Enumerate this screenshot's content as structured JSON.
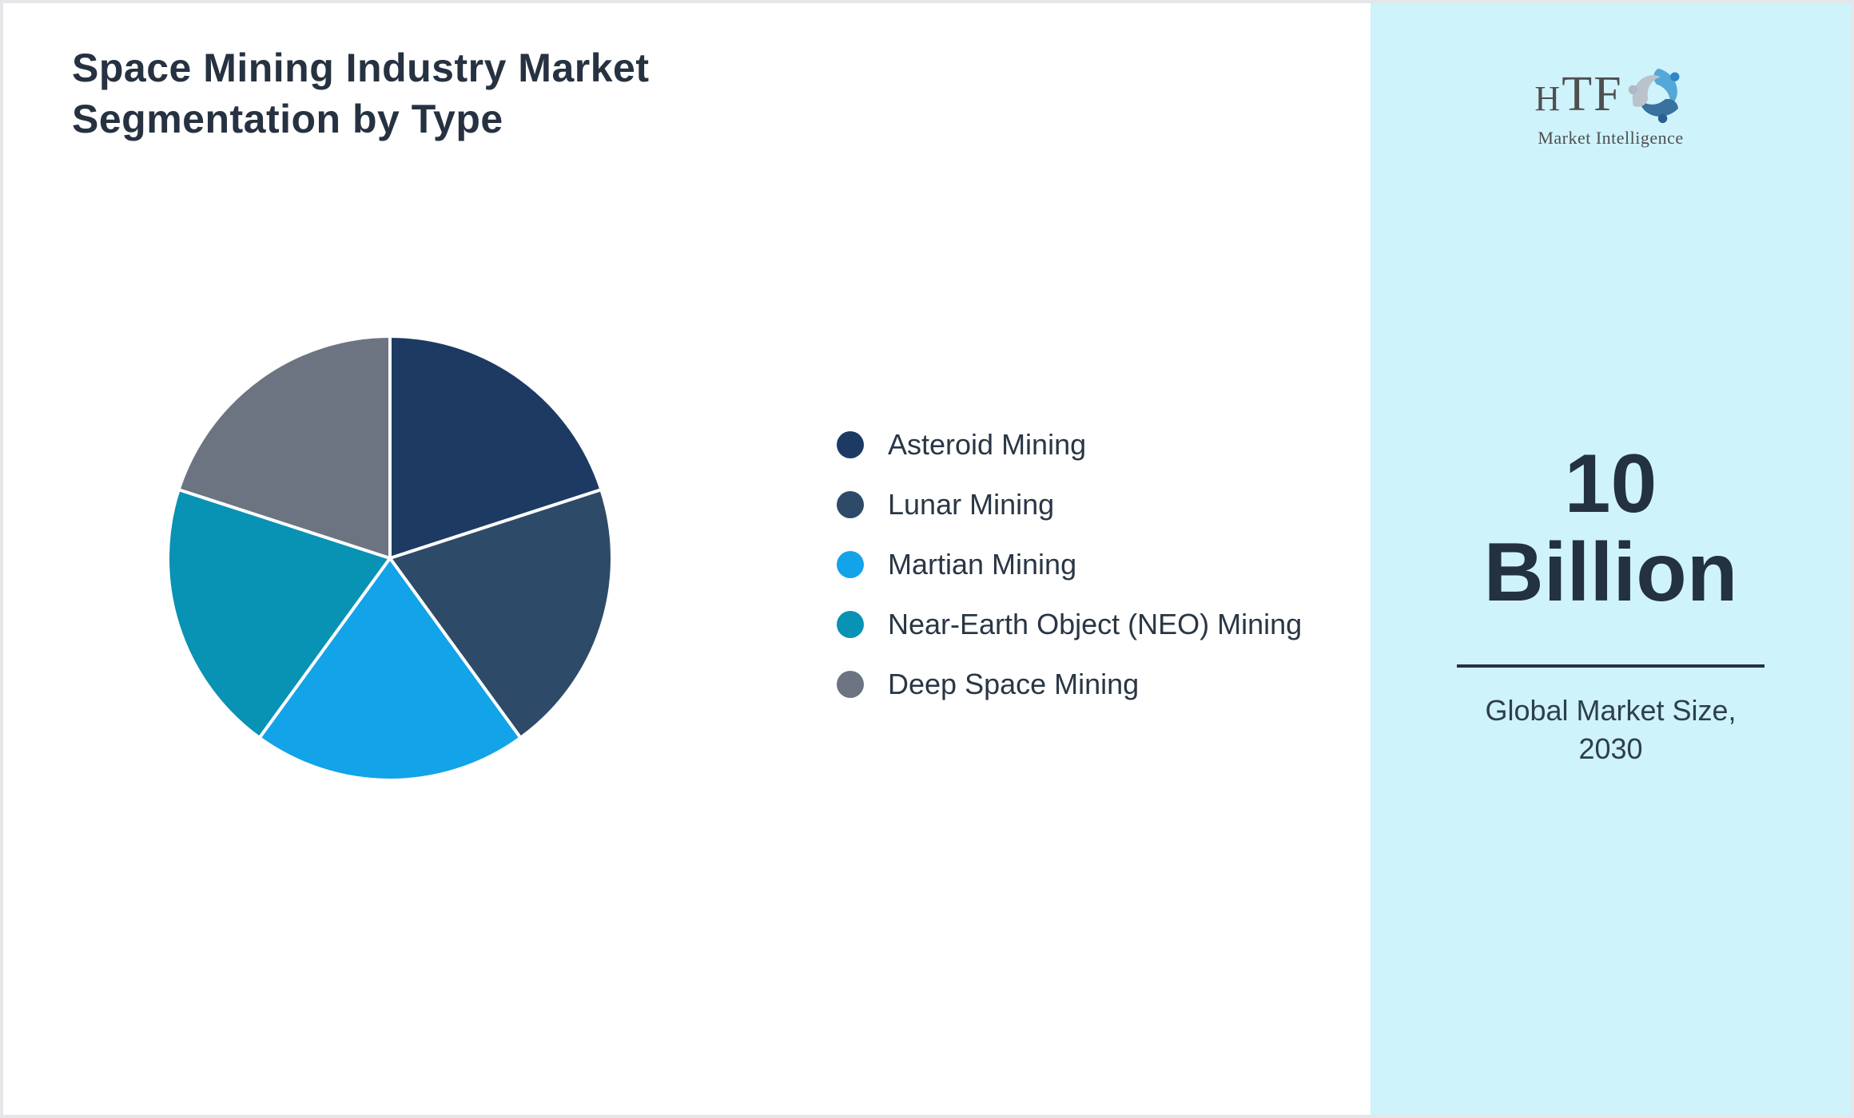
{
  "chart_data": {
    "type": "pie",
    "title": "Space Mining Industry Market Segmentation by Type",
    "categories": [
      "Asteroid Mining",
      "Lunar Mining",
      "Martian Mining",
      "Near-Earth Object (NEO) Mining",
      "Deep Space Mining"
    ],
    "values": [
      20,
      20,
      20,
      20,
      20
    ],
    "unit": "percent-share",
    "colors": [
      "#1D3A63",
      "#2D4B68",
      "#12A3E8",
      "#0892B4",
      "#6C7482"
    ],
    "slice_border_color": "#FFFFFF",
    "start_angle_deg": 0,
    "direction": "clockwise",
    "legend_position": "right",
    "radius_px": 278
  },
  "sidebar": {
    "background_color": "#CEF3FB",
    "logo": {
      "wordmark_h": "H",
      "wordmark_rest": "TF",
      "icon": "dolphin-swirl-icon",
      "subtext": "Market Intelligence"
    },
    "metric_value": "10 Billion",
    "metric_caption": "Global Market Size, 2030"
  },
  "theme": {
    "title_color": "#263241",
    "legend_text_color": "#293645",
    "border_color": "#E4E6E9"
  }
}
